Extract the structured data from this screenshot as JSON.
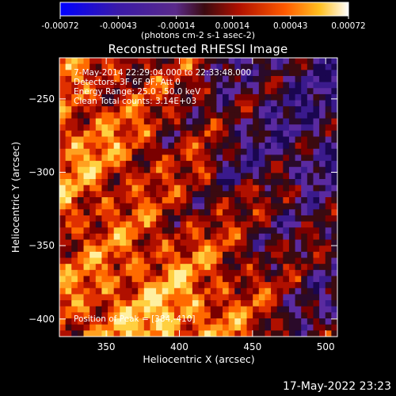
{
  "chart_data": {
    "type": "heatmap",
    "title": "Reconstructed RHESSI Image",
    "xlabel": "Heliocentric X (arcsec)",
    "ylabel": "Heliocentric Y (arcsec)",
    "xlim": [
      318,
      508
    ],
    "ylim": [
      -412,
      -222
    ],
    "xticks": [
      350,
      400,
      450,
      500
    ],
    "yticks": [
      -250,
      -300,
      -350,
      -400
    ],
    "colorbar": {
      "min": -0.00072,
      "max": 0.00072,
      "ticks": [
        "-0.00072",
        "-0.00043",
        "-0.00014",
        "0.00014",
        "0.00043",
        "0.00072"
      ],
      "units": "(photons cm-2 s-1 asec-2)"
    },
    "annotations": [
      "7-May-2014 22:29:04.000 to 22:33:48.000",
      "Detectors: 3F 6F 9F, Att 0",
      "Energy Range: 25.0 - 50.0 keV",
      "Clean   Total counts: 3.14E+03"
    ],
    "peak_label": "Position of Peak = [384,-410]",
    "peak_position": [
      384,
      -410
    ]
  },
  "footer": {
    "timestamp": "17-May-2022 23:23"
  }
}
